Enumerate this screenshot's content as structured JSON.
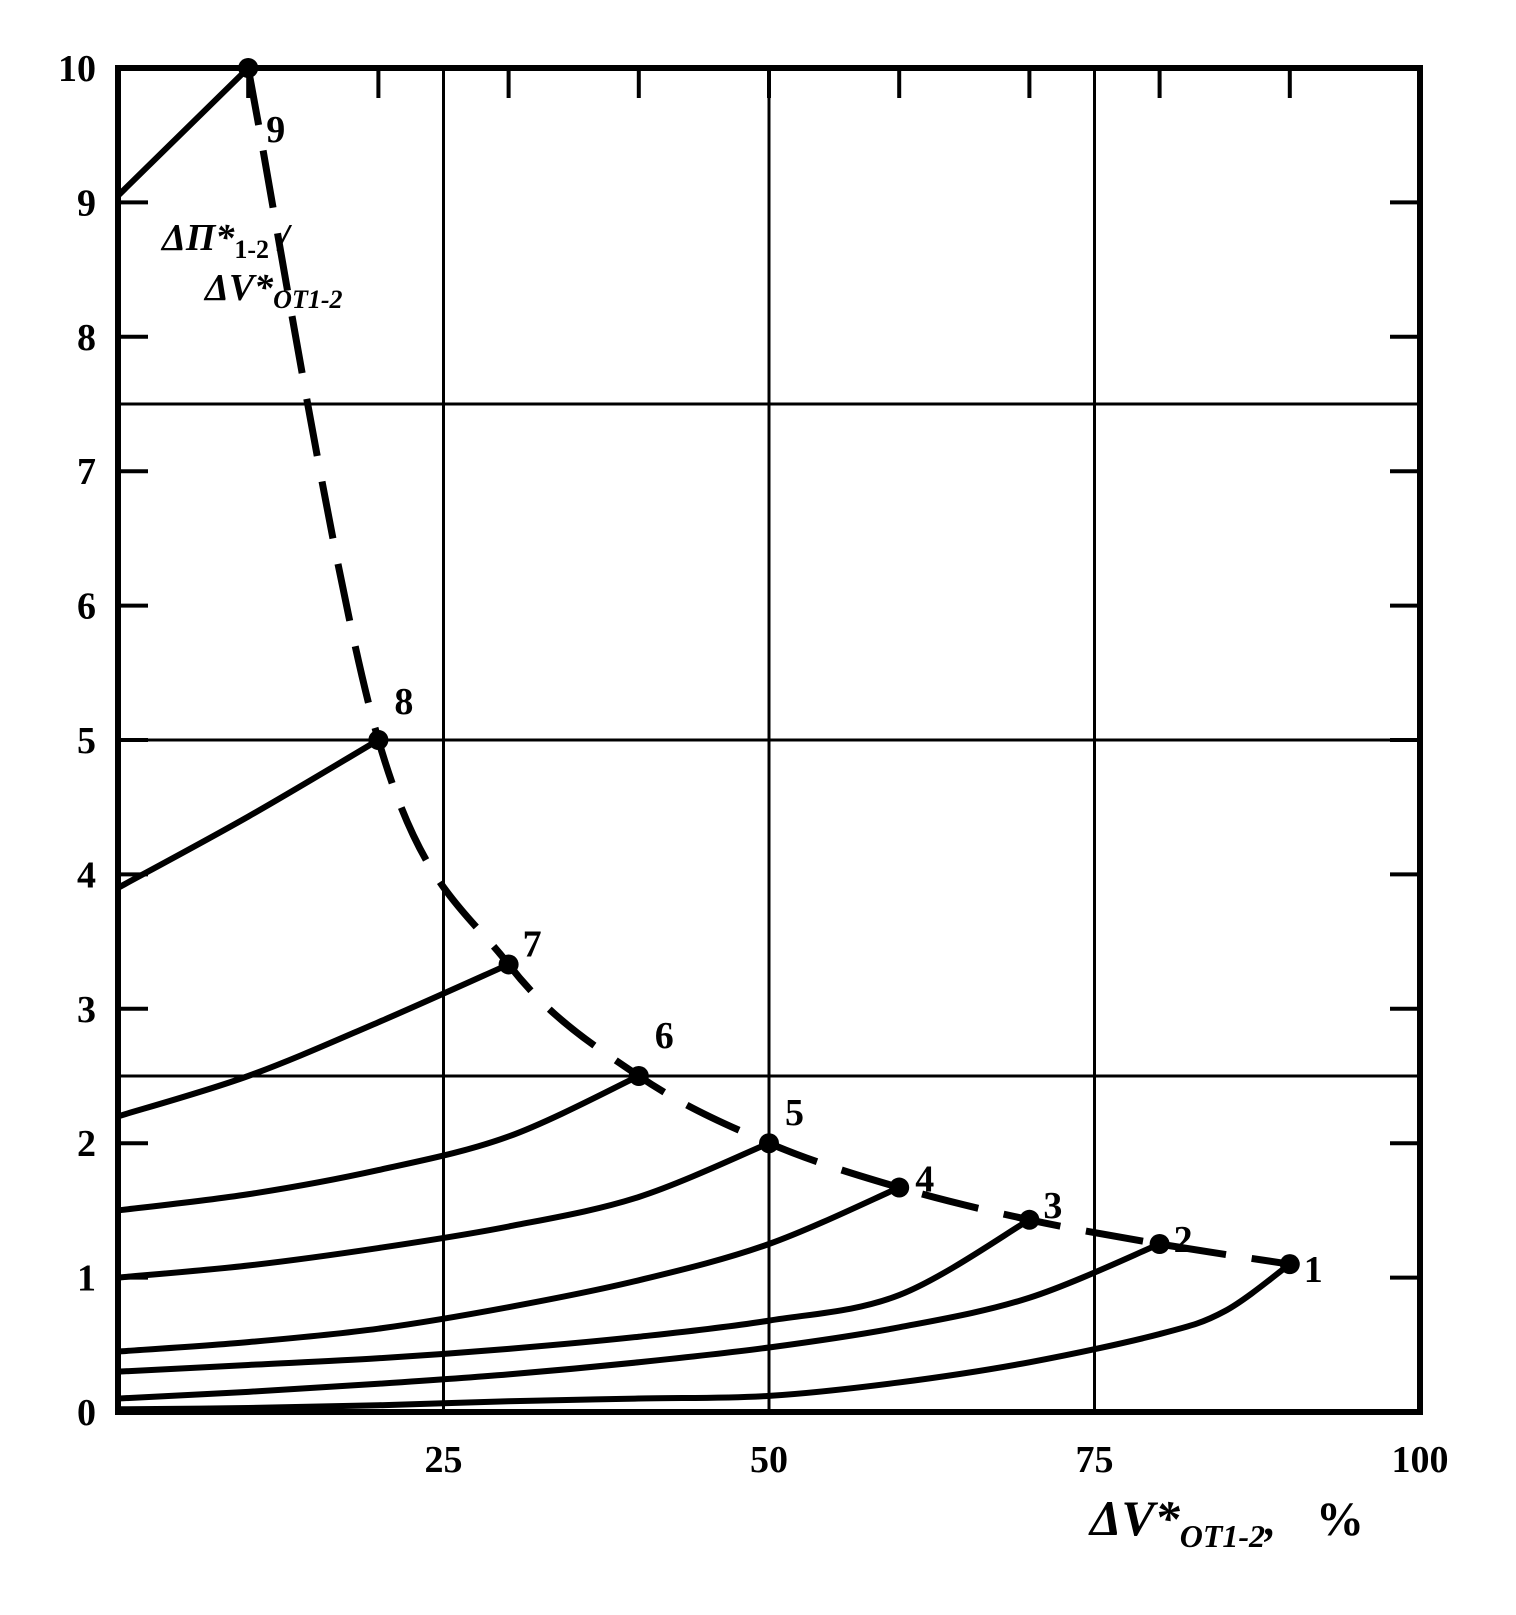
{
  "chart_data": {
    "type": "line",
    "xlim": [
      0,
      100
    ],
    "ylim": [
      0,
      10
    ],
    "x_ticks": [
      "25",
      "50",
      "75",
      "100"
    ],
    "y_ticks": [
      "0",
      "1",
      "2",
      "3",
      "4",
      "5",
      "6",
      "7",
      "8",
      "9",
      "10"
    ],
    "x_grid": [
      25,
      50,
      75
    ],
    "y_grid": [
      2.5,
      5,
      7.5
    ],
    "grid": true,
    "xlabel": {
      "main": "ΔV*",
      "sub": "OT1-2",
      "suffix": ",",
      "unit": "%"
    },
    "curve_label": {
      "line1_main": "ΔП*",
      "line1_sub": "1-2",
      "line1_suffix": " /",
      "line2_main": "ΔV*",
      "line2_sub": "OT1-2"
    },
    "envelope_style": "dashed",
    "points": [
      {
        "label": "1",
        "x": 90,
        "y": 1.1
      },
      {
        "label": "2",
        "x": 80,
        "y": 1.25
      },
      {
        "label": "3",
        "x": 70,
        "y": 1.43
      },
      {
        "label": "4",
        "x": 60,
        "y": 1.67
      },
      {
        "label": "5",
        "x": 50,
        "y": 2.0
      },
      {
        "label": "6",
        "x": 40,
        "y": 2.5
      },
      {
        "label": "7",
        "x": 30,
        "y": 3.33
      },
      {
        "label": "8",
        "x": 20,
        "y": 5.0
      },
      {
        "label": "9",
        "x": 10,
        "y": 10.0
      }
    ],
    "series": [
      {
        "label": "1",
        "points": [
          [
            0,
            0.02
          ],
          [
            10,
            0.03
          ],
          [
            20,
            0.05
          ],
          [
            30,
            0.08
          ],
          [
            40,
            0.1
          ],
          [
            50,
            0.12
          ],
          [
            60,
            0.22
          ],
          [
            70,
            0.37
          ],
          [
            80,
            0.58
          ],
          [
            85,
            0.75
          ],
          [
            90,
            1.1
          ]
        ]
      },
      {
        "label": "2",
        "points": [
          [
            0,
            0.1
          ],
          [
            10,
            0.15
          ],
          [
            20,
            0.21
          ],
          [
            30,
            0.28
          ],
          [
            40,
            0.37
          ],
          [
            50,
            0.48
          ],
          [
            60,
            0.63
          ],
          [
            70,
            0.85
          ],
          [
            80,
            1.25
          ]
        ]
      },
      {
        "label": "3",
        "points": [
          [
            0,
            0.3
          ],
          [
            10,
            0.35
          ],
          [
            20,
            0.4
          ],
          [
            30,
            0.47
          ],
          [
            40,
            0.56
          ],
          [
            50,
            0.68
          ],
          [
            60,
            0.87
          ],
          [
            70,
            1.43
          ]
        ]
      },
      {
        "label": "4",
        "points": [
          [
            0,
            0.45
          ],
          [
            10,
            0.52
          ],
          [
            20,
            0.62
          ],
          [
            30,
            0.78
          ],
          [
            40,
            0.98
          ],
          [
            50,
            1.25
          ],
          [
            60,
            1.67
          ]
        ]
      },
      {
        "label": "5",
        "points": [
          [
            0,
            1.0
          ],
          [
            10,
            1.09
          ],
          [
            20,
            1.22
          ],
          [
            30,
            1.38
          ],
          [
            40,
            1.6
          ],
          [
            50,
            2.0
          ]
        ]
      },
      {
        "label": "6",
        "points": [
          [
            0,
            1.5
          ],
          [
            10,
            1.62
          ],
          [
            20,
            1.8
          ],
          [
            30,
            2.05
          ],
          [
            40,
            2.5
          ]
        ]
      },
      {
        "label": "7",
        "points": [
          [
            0,
            2.2
          ],
          [
            10,
            2.5
          ],
          [
            20,
            2.9
          ],
          [
            30,
            3.33
          ]
        ]
      },
      {
        "label": "8",
        "points": [
          [
            0,
            3.9
          ],
          [
            10,
            4.43
          ],
          [
            20,
            5.0
          ]
        ]
      },
      {
        "label": "9",
        "points": [
          [
            0,
            9.05
          ],
          [
            10,
            10.0
          ]
        ]
      }
    ]
  }
}
